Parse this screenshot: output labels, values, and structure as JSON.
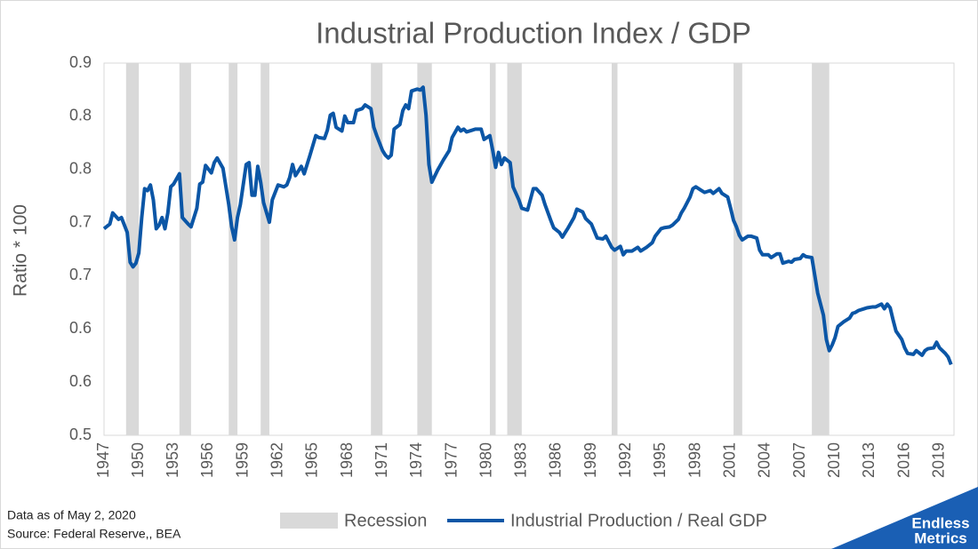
{
  "chart_data": {
    "type": "line",
    "title": "Industrial Production Index / GDP",
    "y_label": "Ratio * 100",
    "xlim": [
      1947,
      2020.25
    ],
    "xticks": [
      1947,
      1950,
      1953,
      1956,
      1959,
      1962,
      1965,
      1968,
      1971,
      1974,
      1977,
      1980,
      1983,
      1986,
      1989,
      1992,
      1995,
      1998,
      2001,
      2004,
      2007,
      2010,
      2013,
      2016,
      2019
    ],
    "ylim": [
      0.5,
      0.9
    ],
    "yticks": [
      0.5,
      {
        "value": 0.5571,
        "label": "0.6"
      },
      {
        "value": 0.6143,
        "label": "0.6"
      },
      {
        "value": 0.6714,
        "label": "0.7"
      },
      {
        "value": 0.7286,
        "label": "0.7"
      },
      {
        "value": 0.7857,
        "label": "0.8"
      },
      {
        "value": 0.8429,
        "label": "0.8"
      },
      0.9
    ],
    "grid": false,
    "recessions": {
      "name": "Recession",
      "color": "#d9d9d9",
      "ranges": [
        [
          1948.9,
          1950.0
        ],
        [
          1953.5,
          1954.5
        ],
        [
          1957.75,
          1958.5
        ],
        [
          1960.5,
          1961.25
        ],
        [
          1970.0,
          1971.0
        ],
        [
          1974.0,
          1975.25
        ],
        [
          1980.25,
          1980.75
        ],
        [
          1981.75,
          1983.0
        ],
        [
          1990.75,
          1991.25
        ],
        [
          2001.25,
          2002.0
        ],
        [
          2008.0,
          2009.5
        ]
      ]
    },
    "x": [
      1947.0,
      1947.5,
      1947.75,
      1948.25,
      1948.5,
      1949.0,
      1949.25,
      1949.5,
      1949.75,
      1950.0,
      1950.25,
      1950.5,
      1950.75,
      1951.0,
      1951.25,
      1951.5,
      1951.75,
      1952.0,
      1952.25,
      1952.5,
      1952.75,
      1953.0,
      1953.5,
      1953.75,
      1954.25,
      1954.5,
      1955.0,
      1955.25,
      1955.5,
      1955.75,
      1956.25,
      1956.5,
      1956.75,
      1957.25,
      1957.75,
      1958.0,
      1958.25,
      1958.5,
      1958.75,
      1959.25,
      1959.5,
      1959.75,
      1960.0,
      1960.25,
      1960.5,
      1960.75,
      1961.25,
      1961.5,
      1962.0,
      1962.5,
      1962.75,
      1963.0,
      1963.25,
      1963.5,
      1964.0,
      1964.25,
      1964.5,
      1964.75,
      1965.25,
      1965.5,
      1966.0,
      1966.25,
      1966.5,
      1966.75,
      1967.0,
      1967.5,
      1967.75,
      1968.0,
      1968.5,
      1968.75,
      1969.25,
      1969.5,
      1970.0,
      1970.25,
      1970.5,
      1971.0,
      1971.25,
      1971.5,
      1971.75,
      1972.0,
      1972.5,
      1972.75,
      1973.0,
      1973.25,
      1973.5,
      1974.0,
      1974.25,
      1974.5,
      1974.75,
      1975.0,
      1975.25,
      1975.75,
      1976.25,
      1976.75,
      1977.0,
      1977.5,
      1977.75,
      1978.0,
      1978.25,
      1978.75,
      1979.0,
      1979.5,
      1979.75,
      1980.25,
      1980.5,
      1980.75,
      1981.0,
      1981.25,
      1981.5,
      1982.0,
      1982.25,
      1982.75,
      1983.0,
      1983.5,
      1984.0,
      1984.25,
      1984.75,
      1985.0,
      1985.5,
      1985.75,
      1986.25,
      1986.5,
      1987.0,
      1987.5,
      1987.75,
      1988.25,
      1988.5,
      1989.0,
      1989.5,
      1990.0,
      1990.25,
      1990.75,
      1991.0,
      1991.5,
      1991.75,
      1992.0,
      1992.5,
      1993.0,
      1993.25,
      1993.75,
      1994.25,
      1994.5,
      1995.0,
      1995.25,
      1995.75,
      1996.0,
      1996.5,
      1996.75,
      1997.0,
      1997.5,
      1997.75,
      1998.0,
      1998.5,
      1998.75,
      1999.25,
      1999.5,
      2000.0,
      2000.25,
      2000.75,
      2001.0,
      2001.25,
      2001.5,
      2001.75,
      2002.0,
      2002.5,
      2002.75,
      2003.25,
      2003.5,
      2003.75,
      2004.25,
      2004.5,
      2005.0,
      2005.25,
      2005.5,
      2006.0,
      2006.25,
      2006.5,
      2007.0,
      2007.25,
      2007.5,
      2008.0,
      2008.25,
      2008.5,
      2009.0,
      2009.25,
      2009.5,
      2009.75,
      2010.0,
      2010.25,
      2010.75,
      2011.25,
      2011.5,
      2011.75,
      2012.0,
      2012.5,
      2012.75,
      2013.25,
      2013.5,
      2014.0,
      2014.25,
      2014.5,
      2014.75,
      2015.0,
      2015.25,
      2015.75,
      2016.0,
      2016.25,
      2016.75,
      2017.0,
      2017.5,
      2017.75,
      2018.0,
      2018.5,
      2018.75,
      2019.0,
      2019.5,
      2019.75,
      2020.0
    ],
    "series": [
      {
        "name": "Industrial Production / Real GDP",
        "color": "#0b56a6",
        "values": [
          0.722,
          0.727,
          0.739,
          0.732,
          0.734,
          0.718,
          0.686,
          0.681,
          0.685,
          0.696,
          0.734,
          0.765,
          0.763,
          0.769,
          0.753,
          0.722,
          0.726,
          0.734,
          0.722,
          0.739,
          0.767,
          0.77,
          0.781,
          0.734,
          0.727,
          0.724,
          0.744,
          0.77,
          0.772,
          0.79,
          0.782,
          0.793,
          0.798,
          0.787,
          0.748,
          0.724,
          0.71,
          0.734,
          0.748,
          0.791,
          0.793,
          0.758,
          0.758,
          0.789,
          0.772,
          0.75,
          0.729,
          0.753,
          0.769,
          0.767,
          0.769,
          0.777,
          0.791,
          0.779,
          0.789,
          0.781,
          0.791,
          0.801,
          0.822,
          0.82,
          0.819,
          0.828,
          0.844,
          0.846,
          0.831,
          0.827,
          0.843,
          0.836,
          0.836,
          0.849,
          0.851,
          0.855,
          0.851,
          0.831,
          0.822,
          0.806,
          0.801,
          0.798,
          0.801,
          0.829,
          0.834,
          0.849,
          0.855,
          0.851,
          0.87,
          0.872,
          0.871,
          0.874,
          0.844,
          0.791,
          0.772,
          0.785,
          0.796,
          0.806,
          0.82,
          0.831,
          0.827,
          0.829,
          0.826,
          0.828,
          0.829,
          0.829,
          0.818,
          0.822,
          0.806,
          0.788,
          0.804,
          0.791,
          0.798,
          0.793,
          0.767,
          0.753,
          0.744,
          0.742,
          0.765,
          0.765,
          0.758,
          0.748,
          0.731,
          0.723,
          0.718,
          0.713,
          0.723,
          0.734,
          0.743,
          0.74,
          0.733,
          0.727,
          0.712,
          0.711,
          0.714,
          0.702,
          0.699,
          0.703,
          0.694,
          0.698,
          0.698,
          0.702,
          0.698,
          0.702,
          0.707,
          0.714,
          0.722,
          0.723,
          0.724,
          0.726,
          0.732,
          0.739,
          0.744,
          0.756,
          0.765,
          0.767,
          0.763,
          0.761,
          0.763,
          0.76,
          0.765,
          0.76,
          0.756,
          0.744,
          0.731,
          0.724,
          0.715,
          0.71,
          0.714,
          0.714,
          0.712,
          0.699,
          0.694,
          0.694,
          0.691,
          0.695,
          0.695,
          0.685,
          0.687,
          0.686,
          0.689,
          0.69,
          0.694,
          0.692,
          0.691,
          0.672,
          0.653,
          0.629,
          0.603,
          0.591,
          0.597,
          0.605,
          0.617,
          0.622,
          0.626,
          0.631,
          0.632,
          0.634,
          0.636,
          0.637,
          0.638,
          0.638,
          0.641,
          0.636,
          0.641,
          0.637,
          0.624,
          0.612,
          0.603,
          0.594,
          0.588,
          0.587,
          0.591,
          0.586,
          0.591,
          0.593,
          0.594,
          0.6,
          0.594,
          0.588,
          0.584,
          0.576
        ]
      }
    ]
  },
  "notes": [
    "Data as of May 2, 2020",
    "Source: Federal Reserve,, BEA"
  ],
  "logo": [
    "Endless",
    "Metrics"
  ]
}
